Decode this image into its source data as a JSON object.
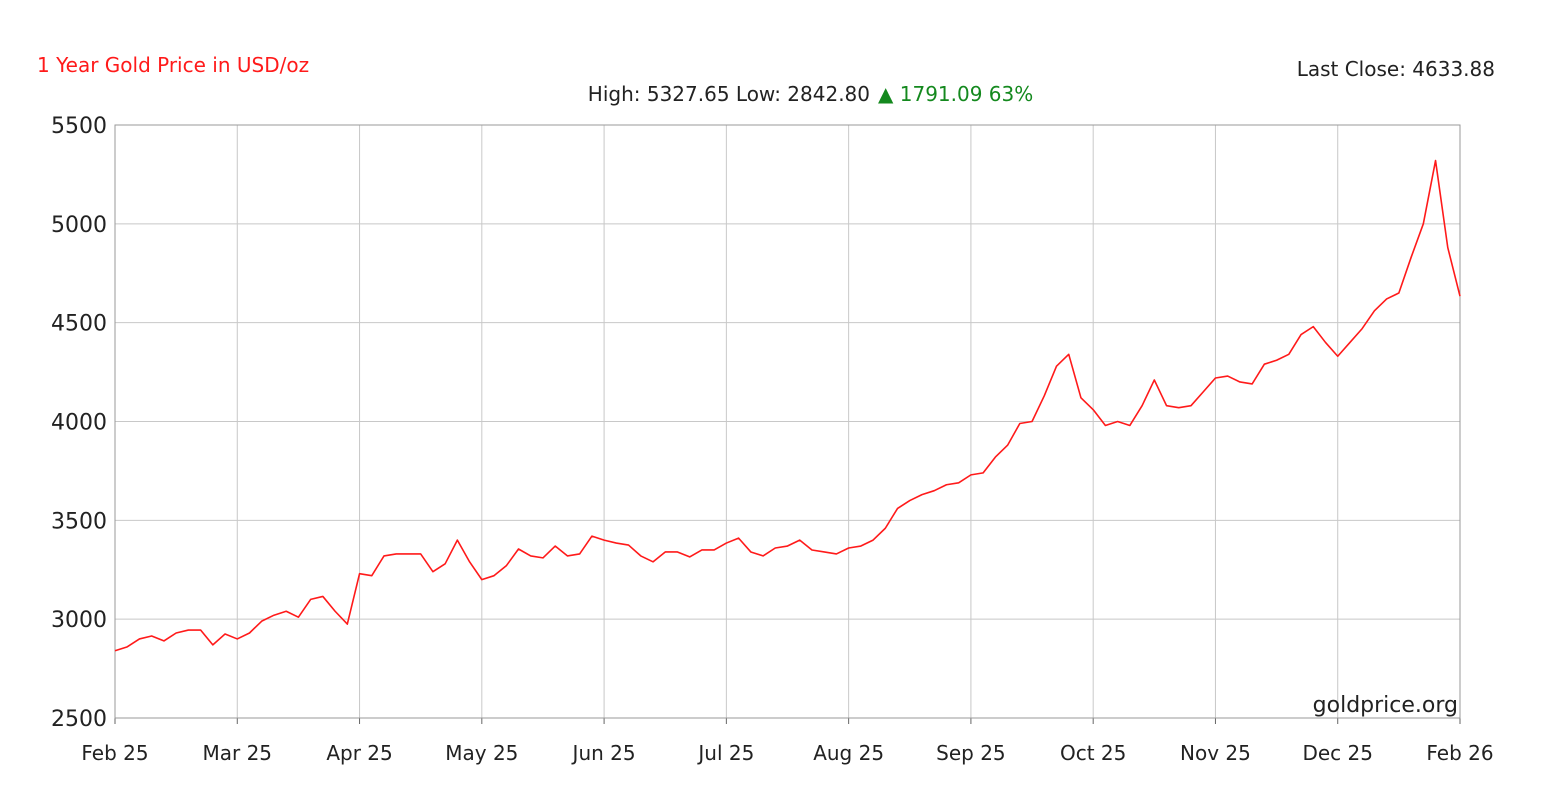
{
  "chart_data": {
    "type": "line",
    "title": "1 Year Gold Price in USD/oz",
    "stats": "High: 5327.65 Low: 2842.80",
    "change": "▲ 1791.09 63%",
    "last_close": "Last Close: 4633.88",
    "watermark": "goldprice.org",
    "color": "#ff1a1a",
    "grid": true,
    "ylim": [
      2500,
      5500
    ],
    "yticks": [
      2500,
      3000,
      3500,
      4000,
      4500,
      5000,
      5500
    ],
    "categories": [
      "Feb 25",
      null,
      null,
      null,
      null,
      null,
      null,
      null,
      null,
      null,
      "Mar 25",
      null,
      null,
      null,
      null,
      null,
      null,
      null,
      null,
      null,
      "Apr 25",
      null,
      null,
      null,
      null,
      null,
      null,
      null,
      null,
      null,
      "May 25",
      null,
      null,
      null,
      null,
      null,
      null,
      null,
      null,
      null,
      "Jun 25",
      null,
      null,
      null,
      null,
      null,
      null,
      null,
      null,
      null,
      "Jul 25",
      null,
      null,
      null,
      null,
      null,
      null,
      null,
      null,
      null,
      "Aug 25",
      null,
      null,
      null,
      null,
      null,
      null,
      null,
      null,
      null,
      "Sep 25",
      null,
      null,
      null,
      null,
      null,
      null,
      null,
      null,
      null,
      "Oct 25",
      null,
      null,
      null,
      null,
      null,
      null,
      null,
      null,
      null,
      "Nov 25",
      null,
      null,
      null,
      null,
      null,
      null,
      null,
      null,
      null,
      "Dec 25",
      null,
      null,
      null,
      null,
      null,
      null,
      null,
      null,
      null,
      "Feb 26"
    ],
    "values": [
      2840,
      2860,
      2900,
      2915,
      2890,
      2930,
      2945,
      2945,
      2870,
      2925,
      2900,
      2930,
      2990,
      3020,
      3040,
      3010,
      3100,
      3115,
      3040,
      2975,
      3230,
      3220,
      3320,
      3330,
      3330,
      3330,
      3240,
      3280,
      3400,
      3290,
      3200,
      3220,
      3270,
      3355,
      3320,
      3310,
      3370,
      3320,
      3330,
      3420,
      3400,
      3385,
      3375,
      3320,
      3290,
      3340,
      3340,
      3315,
      3350,
      3350,
      3385,
      3410,
      3340,
      3320,
      3360,
      3370,
      3400,
      3350,
      3340,
      3330,
      3360,
      3370,
      3400,
      3460,
      3560,
      3600,
      3630,
      3650,
      3680,
      3690,
      3730,
      3740,
      3820,
      3880,
      3990,
      4000,
      4130,
      4280,
      4340,
      4120,
      4060,
      3980,
      4000,
      3980,
      4080,
      4210,
      4080,
      4070,
      4080,
      4150,
      4220,
      4230,
      4200,
      4190,
      4290,
      4310,
      4340,
      4440,
      4480,
      4400,
      4330,
      4400,
      4470,
      4560,
      4620,
      4650,
      4830,
      5000,
      5320,
      4880,
      4634
    ]
  }
}
